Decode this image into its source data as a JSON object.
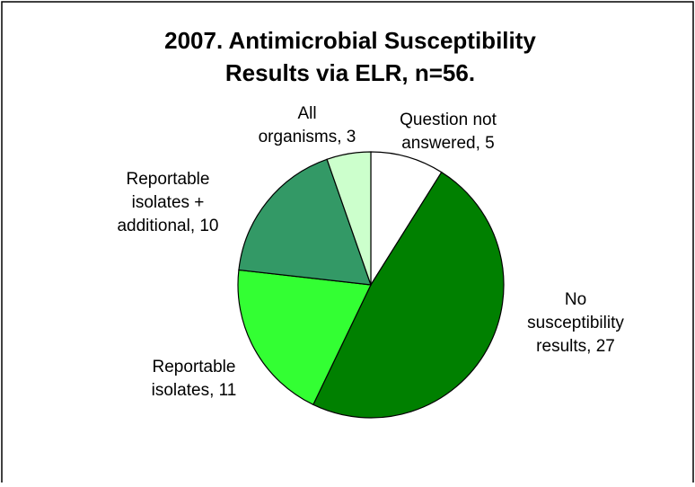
{
  "chart_data": {
    "type": "pie",
    "title": [
      "2007. Antimicrobial Susceptibility",
      "Results via ELR, n=56."
    ],
    "values": [
      5,
      27,
      11,
      10,
      3
    ],
    "value_labels": [
      [
        "Question not",
        "answered, 5"
      ],
      [
        "No",
        "susceptibility",
        "results, 27"
      ],
      [
        "Reportable",
        "isolates, 11"
      ],
      [
        "Reportable",
        "isolates +",
        "additional, 10"
      ],
      [
        "All",
        "organisms, 3"
      ]
    ],
    "colors": [
      "#ffffff",
      "#008000",
      "#33ff33",
      "#339966",
      "#ccffcc"
    ]
  }
}
